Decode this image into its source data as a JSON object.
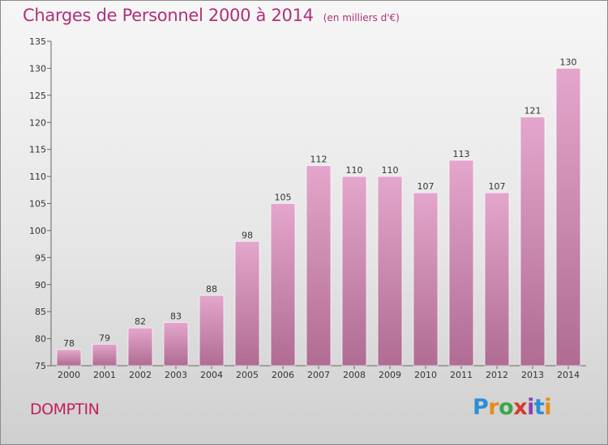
{
  "header": {
    "title": "Charges de Personnel 2000 à 2014",
    "subtitle": "(en milliers d'€)"
  },
  "footer": {
    "town": "DOMPTIN",
    "logo_text": "Proxiti"
  },
  "colors": {
    "bar_top": "#e4a6cc",
    "bar_bottom": "#b06c92",
    "title": "#b0307a",
    "town": "#c21f5f"
  },
  "chart_data": {
    "type": "bar",
    "title": "Charges de Personnel 2000 à 2014",
    "subtitle": "(en milliers d'€)",
    "categories": [
      "2000",
      "2001",
      "2002",
      "2003",
      "2004",
      "2005",
      "2006",
      "2007",
      "2008",
      "2009",
      "2010",
      "2011",
      "2012",
      "2013",
      "2014"
    ],
    "values": [
      78,
      79,
      82,
      83,
      88,
      98,
      105,
      112,
      110,
      110,
      107,
      113,
      107,
      121,
      130
    ],
    "ylim": [
      75,
      135
    ],
    "yticks": [
      75,
      80,
      85,
      90,
      95,
      100,
      105,
      110,
      115,
      120,
      125,
      130,
      135
    ],
    "grid": false,
    "legend": "none",
    "xlabel": "",
    "ylabel": ""
  }
}
